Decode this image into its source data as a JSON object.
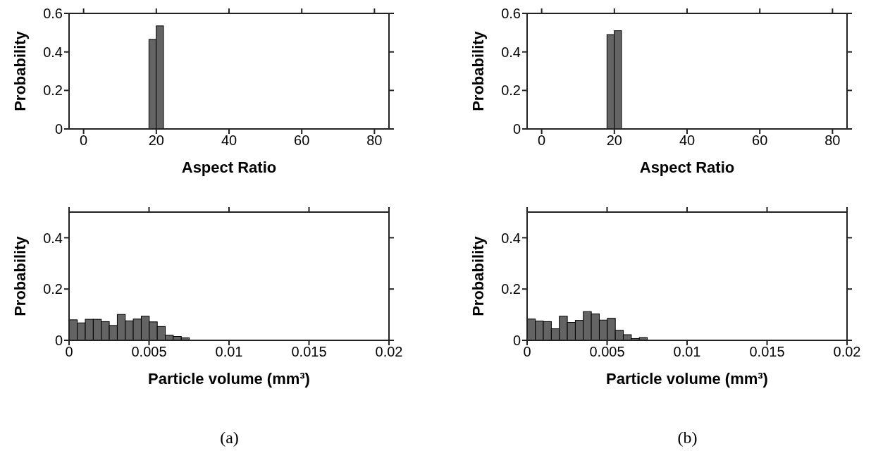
{
  "chart_data": [
    {
      "type": "histogram",
      "xlabel": "Aspect Ratio",
      "ylabel": "Probability",
      "bins": [
        18,
        20,
        22
      ],
      "values": [
        0.465,
        0.535
      ],
      "color": "#646464",
      "xlim": [
        -4,
        84
      ],
      "ylim": [
        0,
        0.6
      ],
      "xticks": [
        0,
        20,
        40,
        60,
        80
      ],
      "yticks": [
        0,
        0.2,
        0.4,
        0.6
      ]
    },
    {
      "type": "histogram",
      "xlabel": "Aspect Ratio",
      "ylabel": "Probability",
      "bins": [
        18,
        20,
        22
      ],
      "values": [
        0.49,
        0.51
      ],
      "color": "#646464",
      "xlim": [
        -4,
        84
      ],
      "ylim": [
        0,
        0.6
      ],
      "xticks": [
        0,
        20,
        40,
        60,
        80
      ],
      "yticks": [
        0,
        0.2,
        0.4,
        0.6
      ]
    },
    {
      "type": "histogram",
      "xlabel": "Particle volume (mm³)",
      "ylabel": "Probability",
      "bins": [
        0,
        0.0005,
        0.001,
        0.0015,
        0.002,
        0.0025,
        0.003,
        0.0035,
        0.004,
        0.0045,
        0.005,
        0.0055,
        0.006,
        0.0065,
        0.007,
        0.0075
      ],
      "values": [
        0.08,
        0.068,
        0.082,
        0.082,
        0.073,
        0.058,
        0.101,
        0.076,
        0.083,
        0.094,
        0.072,
        0.054,
        0.02,
        0.015,
        0.01
      ],
      "color": "#646464",
      "xlim": [
        0,
        0.02
      ],
      "ylim": [
        0,
        0.5
      ],
      "xticks": [
        0,
        0.005,
        0.01,
        0.015,
        0.02
      ],
      "yticks": [
        0,
        0.2,
        0.4
      ],
      "annotations": [
        "(a)"
      ]
    },
    {
      "type": "histogram",
      "xlabel": "Particle volume (mm³)",
      "ylabel": "Probability",
      "bins": [
        0,
        0.0005,
        0.001,
        0.0015,
        0.002,
        0.0025,
        0.003,
        0.0035,
        0.004,
        0.0045,
        0.005,
        0.0055,
        0.006,
        0.0065,
        0.007,
        0.0075
      ],
      "values": [
        0.083,
        0.075,
        0.073,
        0.045,
        0.094,
        0.07,
        0.078,
        0.112,
        0.103,
        0.079,
        0.086,
        0.039,
        0.022,
        0.007,
        0.011
      ],
      "color": "#646464",
      "xlim": [
        0,
        0.02
      ],
      "ylim": [
        0,
        0.5
      ],
      "xticks": [
        0,
        0.005,
        0.01,
        0.015,
        0.02
      ],
      "yticks": [
        0,
        0.2,
        0.4
      ],
      "annotations": [
        "(b)"
      ]
    }
  ]
}
